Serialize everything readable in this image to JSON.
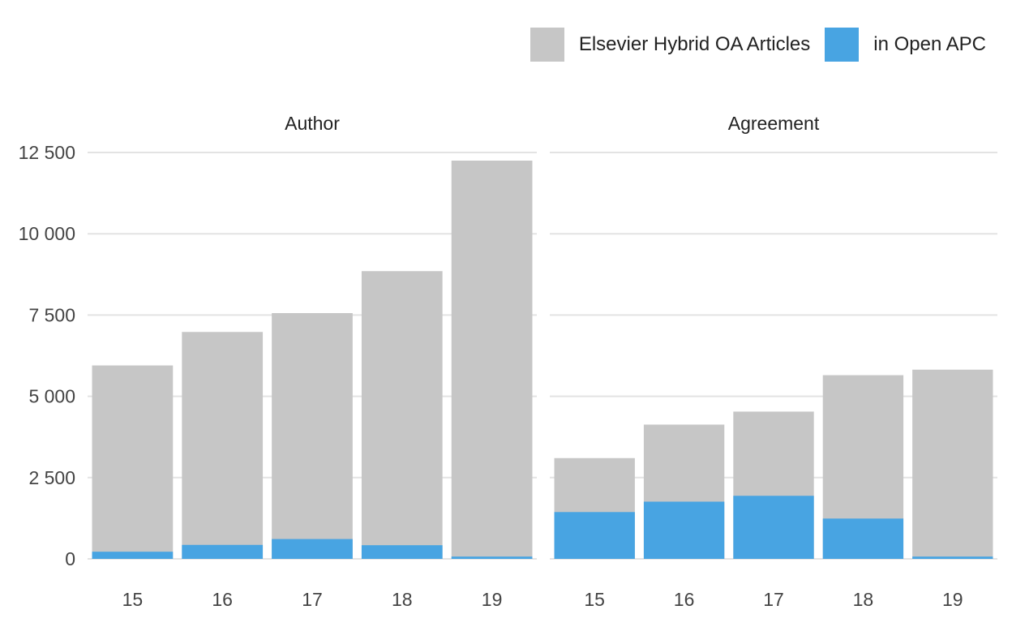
{
  "chart_data": {
    "type": "bar",
    "stacked": true,
    "legend": [
      {
        "label": "Elsevier Hybrid OA Articles",
        "color": "#c6c6c6"
      },
      {
        "label": "in Open APC",
        "color": "#48a4e2"
      }
    ],
    "legend_placement": "top-right",
    "y_ticks": [
      "0",
      "2 500",
      "5 000",
      "7 500",
      "10 000",
      "12 500"
    ],
    "ylim": [
      0,
      12500
    ],
    "grid": true,
    "panels": [
      {
        "title": "Author",
        "categories": [
          "15",
          "16",
          "17",
          "18",
          "19"
        ],
        "series": [
          {
            "name": "Elsevier Hybrid OA Articles",
            "values": [
              5950,
              6980,
              7560,
              8850,
              12250
            ]
          },
          {
            "name": "in Open APC",
            "values": [
              220,
              430,
              610,
              420,
              70
            ]
          }
        ]
      },
      {
        "title": "Agreement",
        "categories": [
          "15",
          "16",
          "17",
          "18",
          "19"
        ],
        "series": [
          {
            "name": "Elsevier Hybrid OA Articles",
            "values": [
              3100,
              4130,
              4530,
              5650,
              5820
            ]
          },
          {
            "name": "in Open APC",
            "values": [
              1440,
              1760,
              1940,
              1240,
              70
            ]
          }
        ]
      }
    ]
  }
}
